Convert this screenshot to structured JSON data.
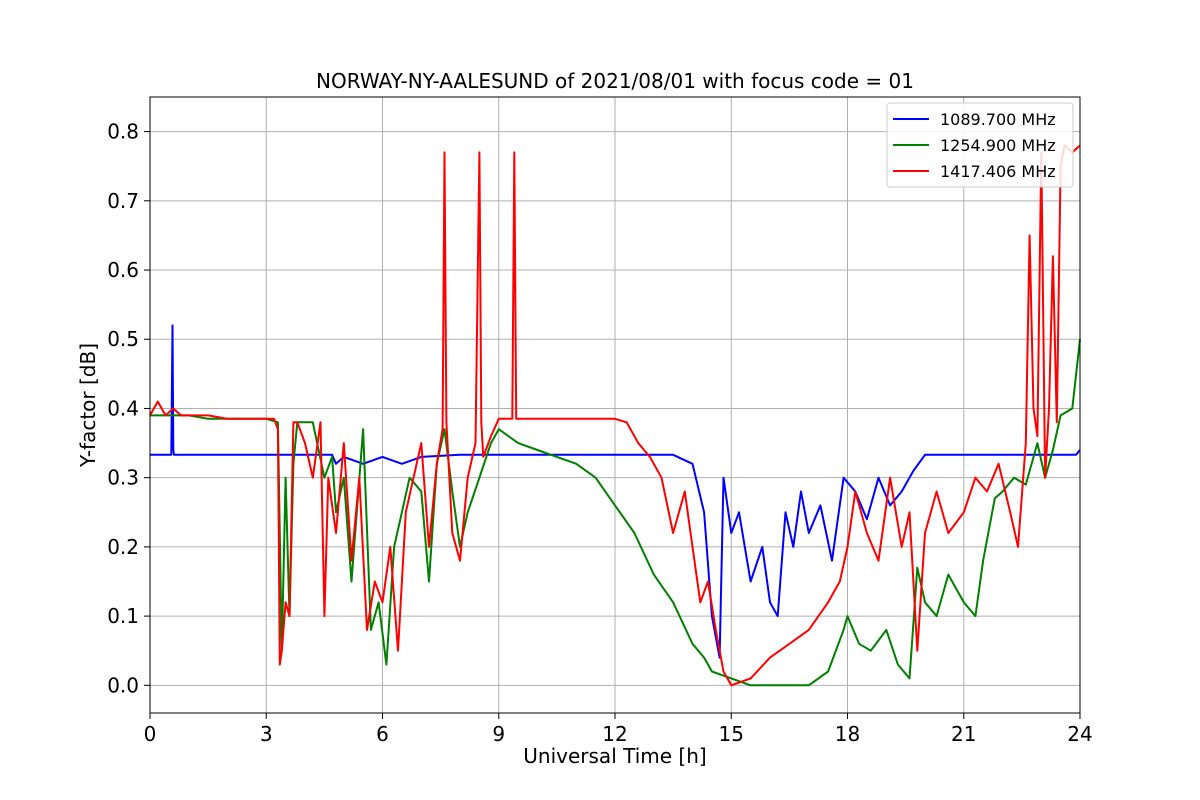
{
  "chart_data": {
    "type": "line",
    "title": "NORWAY-NY-AALESUND of 2021/08/01 with focus code = 01",
    "xlabel": "Universal Time [h]",
    "ylabel": "Y-factor [dB]",
    "xlim": [
      0,
      24
    ],
    "ylim": [
      -0.04,
      0.85
    ],
    "xticks": [
      0,
      3,
      6,
      9,
      12,
      15,
      18,
      21,
      24
    ],
    "yticks": [
      0.0,
      0.1,
      0.2,
      0.3,
      0.4,
      0.5,
      0.6,
      0.7,
      0.8
    ],
    "grid": true,
    "legend_position": "top-right",
    "series": [
      {
        "name": "1089.700 MHz",
        "color": "#0000ff",
        "x": [
          0,
          0.55,
          0.58,
          0.6,
          0.62,
          0.65,
          4.7,
          4.8,
          5.0,
          5.5,
          6.0,
          6.5,
          7.0,
          8.0,
          9.0,
          9.5,
          10.0,
          11.0,
          12.0,
          12.8,
          13.5,
          14.0,
          14.3,
          14.5,
          14.7,
          14.8,
          15.0,
          15.2,
          15.5,
          15.8,
          16.0,
          16.2,
          16.4,
          16.6,
          16.8,
          17.0,
          17.3,
          17.6,
          17.9,
          18.2,
          18.5,
          18.8,
          19.1,
          19.4,
          19.7,
          20.0,
          20.5,
          21.0,
          21.5,
          22.0,
          22.5,
          23.0,
          23.5,
          23.9,
          24.0
        ],
        "y": [
          0.333,
          0.333,
          0.52,
          0.34,
          0.333,
          0.333,
          0.333,
          0.32,
          0.33,
          0.32,
          0.33,
          0.32,
          0.33,
          0.333,
          0.333,
          0.333,
          0.333,
          0.333,
          0.333,
          0.333,
          0.333,
          0.32,
          0.25,
          0.1,
          0.04,
          0.3,
          0.22,
          0.25,
          0.15,
          0.2,
          0.12,
          0.1,
          0.25,
          0.2,
          0.28,
          0.22,
          0.26,
          0.18,
          0.3,
          0.28,
          0.24,
          0.3,
          0.26,
          0.28,
          0.31,
          0.333,
          0.333,
          0.333,
          0.333,
          0.333,
          0.333,
          0.333,
          0.333,
          0.333,
          0.34
        ]
      },
      {
        "name": "1254.900 MHz",
        "color": "#008000",
        "x": [
          0,
          0.5,
          1.0,
          1.5,
          2.0,
          2.5,
          3.0,
          3.3,
          3.4,
          3.5,
          3.6,
          3.7,
          3.8,
          4.2,
          4.5,
          4.7,
          4.8,
          5.0,
          5.2,
          5.5,
          5.7,
          5.9,
          6.1,
          6.3,
          6.5,
          6.7,
          7.0,
          7.2,
          7.4,
          7.6,
          7.8,
          8.0,
          8.2,
          8.5,
          8.8,
          9.0,
          9.5,
          10.0,
          10.5,
          11.0,
          11.5,
          12.0,
          12.5,
          13.0,
          13.5,
          14.0,
          14.3,
          14.5,
          15.0,
          15.5,
          16.0,
          16.5,
          17.0,
          17.5,
          17.9,
          18.0,
          18.3,
          18.6,
          19.0,
          19.3,
          19.6,
          19.8,
          20.0,
          20.3,
          20.6,
          21.0,
          21.3,
          21.5,
          21.8,
          22.0,
          22.3,
          22.6,
          22.9,
          23.1,
          23.3,
          23.5,
          23.8,
          24.0
        ],
        "y": [
          0.39,
          0.39,
          0.39,
          0.385,
          0.385,
          0.385,
          0.385,
          0.38,
          0.05,
          0.3,
          0.1,
          0.32,
          0.38,
          0.38,
          0.3,
          0.33,
          0.25,
          0.3,
          0.15,
          0.37,
          0.08,
          0.12,
          0.03,
          0.2,
          0.25,
          0.3,
          0.28,
          0.15,
          0.32,
          0.37,
          0.28,
          0.2,
          0.25,
          0.3,
          0.35,
          0.37,
          0.35,
          0.34,
          0.33,
          0.32,
          0.3,
          0.26,
          0.22,
          0.16,
          0.12,
          0.06,
          0.04,
          0.02,
          0.01,
          0.0,
          0.0,
          0.0,
          0.0,
          0.02,
          0.08,
          0.1,
          0.06,
          0.05,
          0.08,
          0.03,
          0.01,
          0.17,
          0.12,
          0.1,
          0.16,
          0.12,
          0.1,
          0.18,
          0.27,
          0.28,
          0.3,
          0.29,
          0.35,
          0.3,
          0.34,
          0.39,
          0.4,
          0.5
        ]
      },
      {
        "name": "1417.406 MHz",
        "color": "#ff0000",
        "x": [
          0,
          0.2,
          0.4,
          0.6,
          0.8,
          1.0,
          1.5,
          2.0,
          2.5,
          3.0,
          3.2,
          3.3,
          3.35,
          3.4,
          3.5,
          3.6,
          3.7,
          3.8,
          4.0,
          4.2,
          4.4,
          4.5,
          4.6,
          4.8,
          5.0,
          5.2,
          5.4,
          5.6,
          5.8,
          6.0,
          6.2,
          6.4,
          6.6,
          6.8,
          7.0,
          7.2,
          7.4,
          7.55,
          7.6,
          7.65,
          7.8,
          8.0,
          8.2,
          8.4,
          8.5,
          8.55,
          8.6,
          8.8,
          9.0,
          9.2,
          9.35,
          9.4,
          9.45,
          9.6,
          10.0,
          10.5,
          11.0,
          11.5,
          12.0,
          12.3,
          12.6,
          12.9,
          13.2,
          13.5,
          13.8,
          14.0,
          14.2,
          14.4,
          14.6,
          14.8,
          15.0,
          15.5,
          16.0,
          16.5,
          17.0,
          17.5,
          17.8,
          18.0,
          18.2,
          18.5,
          18.8,
          19.1,
          19.4,
          19.6,
          19.8,
          20.0,
          20.3,
          20.6,
          21.0,
          21.3,
          21.6,
          21.9,
          22.2,
          22.4,
          22.6,
          22.7,
          22.8,
          22.9,
          23.0,
          23.1,
          23.2,
          23.3,
          23.4,
          23.5,
          23.6,
          23.8,
          24.0
        ],
        "y": [
          0.39,
          0.41,
          0.39,
          0.4,
          0.39,
          0.39,
          0.39,
          0.385,
          0.385,
          0.385,
          0.385,
          0.37,
          0.03,
          0.05,
          0.12,
          0.1,
          0.38,
          0.38,
          0.35,
          0.3,
          0.38,
          0.1,
          0.3,
          0.22,
          0.35,
          0.18,
          0.3,
          0.08,
          0.15,
          0.12,
          0.2,
          0.05,
          0.25,
          0.3,
          0.35,
          0.2,
          0.32,
          0.37,
          0.77,
          0.38,
          0.22,
          0.18,
          0.3,
          0.35,
          0.77,
          0.38,
          0.33,
          0.36,
          0.385,
          0.385,
          0.385,
          0.77,
          0.385,
          0.385,
          0.385,
          0.385,
          0.385,
          0.385,
          0.385,
          0.38,
          0.35,
          0.33,
          0.3,
          0.22,
          0.28,
          0.2,
          0.12,
          0.15,
          0.08,
          0.02,
          0.0,
          0.01,
          0.04,
          0.06,
          0.08,
          0.12,
          0.15,
          0.2,
          0.28,
          0.22,
          0.18,
          0.3,
          0.2,
          0.25,
          0.05,
          0.22,
          0.28,
          0.22,
          0.25,
          0.3,
          0.28,
          0.32,
          0.25,
          0.2,
          0.35,
          0.65,
          0.4,
          0.36,
          0.77,
          0.3,
          0.4,
          0.62,
          0.38,
          0.75,
          0.78,
          0.77,
          0.78
        ]
      }
    ]
  }
}
